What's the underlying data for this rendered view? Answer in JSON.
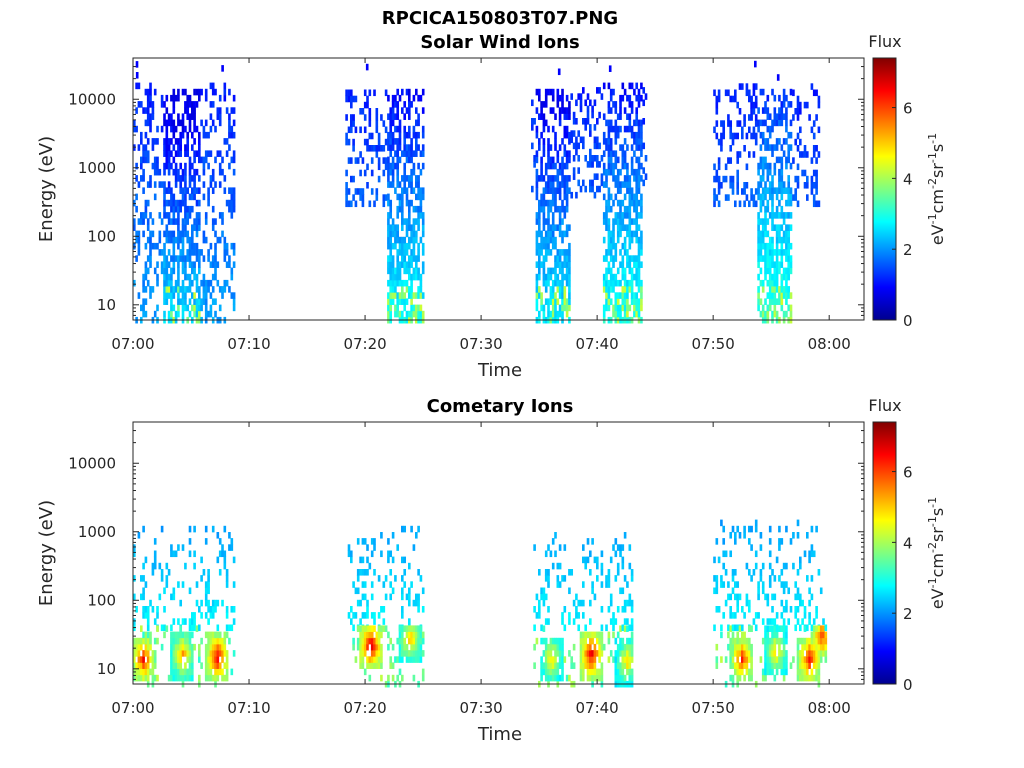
{
  "figure": {
    "title": "RPCICA150803T07.PNG"
  },
  "chart_data": [
    {
      "type": "heatmap",
      "title": "Solar Wind Ions",
      "xlabel": "Time",
      "ylabel": "Energy (eV)",
      "x_ticks": [
        "07:00",
        "07:10",
        "07:20",
        "07:30",
        "07:40",
        "07:50",
        "08:00"
      ],
      "xlim_minutes": [
        0,
        63
      ],
      "y_scale": "log",
      "y_ticks": [
        10,
        100,
        1000,
        10000
      ],
      "y_tick_labels": [
        "10",
        "100",
        "1000",
        "10000"
      ],
      "ylim": [
        6,
        40000
      ],
      "colorbar": {
        "title": "Flux",
        "ticks": [
          0,
          2,
          4,
          6
        ],
        "range": [
          0,
          7.4
        ],
        "colormap": "jet",
        "unit": [
          "eV",
          "-1",
          "cm",
          "-2",
          "sr",
          "-1",
          "s",
          "-1"
        ]
      },
      "bursts": [
        {
          "start_min": 0.0,
          "end_min": 8.7,
          "e_low": 6,
          "e_high": 22000,
          "cores": [
            {
              "start_min": 2.5,
              "end_min": 5.7,
              "e_min": 6,
              "e_max": 14000,
              "peak_flux": 2.5
            }
          ]
        },
        {
          "start_min": 18.3,
          "end_min": 24.9,
          "e_low": 300,
          "e_high": 14000,
          "cores": [
            {
              "start_min": 21.7,
              "end_min": 24.9,
              "e_min": 6,
              "e_max": 14000,
              "peak_flux": 2.9
            }
          ]
        },
        {
          "start_min": 34.3,
          "end_min": 44.2,
          "e_low": 400,
          "e_high": 38000,
          "cores": [
            {
              "start_min": 34.6,
              "end_min": 37.6,
              "e_min": 6,
              "e_max": 15000,
              "peak_flux": 2.7
            },
            {
              "start_min": 40.5,
              "end_min": 43.8,
              "e_min": 6,
              "e_max": 16000,
              "peak_flux": 3.0
            }
          ]
        },
        {
          "start_min": 50.0,
          "end_min": 59.1,
          "e_low": 300,
          "e_high": 38000,
          "cores": [
            {
              "start_min": 53.7,
              "end_min": 56.8,
              "e_min": 6,
              "e_max": 15000,
              "peak_flux": 3.2
            }
          ]
        }
      ]
    },
    {
      "type": "heatmap",
      "title": "Cometary Ions",
      "xlabel": "Time",
      "ylabel": "Energy (eV)",
      "x_ticks": [
        "07:00",
        "07:10",
        "07:20",
        "07:30",
        "07:40",
        "07:50",
        "08:00"
      ],
      "xlim_minutes": [
        0,
        63
      ],
      "y_scale": "log",
      "y_ticks": [
        10,
        100,
        1000,
        10000
      ],
      "y_tick_labels": [
        "10",
        "100",
        "1000",
        "10000"
      ],
      "ylim": [
        6,
        40000
      ],
      "colorbar": {
        "title": "Flux",
        "ticks": [
          0,
          2,
          4,
          6
        ],
        "range": [
          0,
          7.4
        ],
        "colormap": "jet",
        "unit": [
          "eV",
          "-1",
          "cm",
          "-2",
          "sr",
          "-1",
          "s",
          "-1"
        ]
      },
      "bursts": [
        {
          "start_min": 0.0,
          "end_min": 8.8,
          "e_low": 6,
          "e_high": 1200,
          "hot": [
            {
              "t_min": 0.8,
              "e": 14,
              "flux": 6.5
            },
            {
              "t_min": 4.2,
              "e": 16,
              "flux": 5.5
            },
            {
              "t_min": 7.2,
              "e": 15,
              "flux": 6.8
            }
          ]
        },
        {
          "start_min": 18.5,
          "end_min": 24.9,
          "e_low": 6,
          "e_high": 1200,
          "hot": [
            {
              "t_min": 20.4,
              "e": 22,
              "flux": 7.0
            },
            {
              "t_min": 23.8,
              "e": 28,
              "flux": 5.3
            }
          ]
        },
        {
          "start_min": 34.5,
          "end_min": 43.1,
          "e_low": 6,
          "e_high": 1100,
          "hot": [
            {
              "t_min": 36.0,
              "e": 14,
              "flux": 5.0
            },
            {
              "t_min": 39.4,
              "e": 16,
              "flux": 6.9
            },
            {
              "t_min": 42.5,
              "e": 13,
              "flux": 5.0
            }
          ]
        },
        {
          "start_min": 50.0,
          "end_min": 59.7,
          "e_low": 6,
          "e_high": 1600,
          "hot": [
            {
              "t_min": 52.4,
              "e": 14,
              "flux": 6.3
            },
            {
              "t_min": 55.3,
              "e": 18,
              "flux": 5.1
            },
            {
              "t_min": 58.2,
              "e": 14,
              "flux": 6.6
            },
            {
              "t_min": 59.3,
              "e": 30,
              "flux": 6.2
            }
          ]
        }
      ]
    }
  ]
}
